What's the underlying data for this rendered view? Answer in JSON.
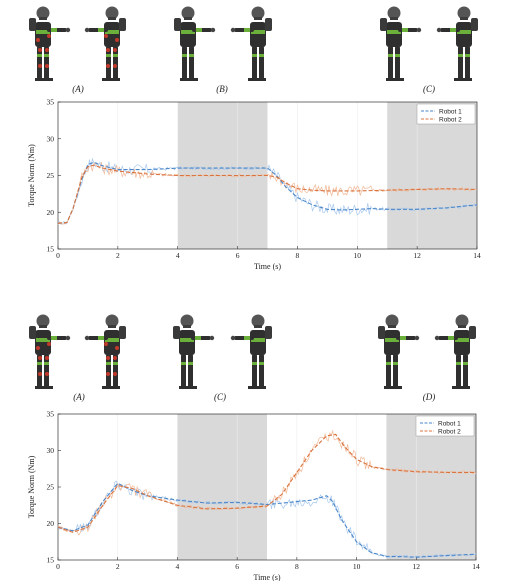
{
  "colors": {
    "robot1": "#4a86c8",
    "robot1_raw": "#a9c9ee",
    "robot2": "#d9743f",
    "robot2_raw": "#f2b896",
    "shade": "#d9d9d9",
    "robot_body": "#2f2f2f",
    "robot_green": "#6ab03a",
    "robot_red": "#c0392b"
  },
  "icons": [
    "humanoid-robot-icon"
  ],
  "chart_data": [
    {
      "type": "line",
      "xlabel": "Time (s)",
      "ylabel": "Torque Norm (Nm)",
      "xlim": [
        0,
        14
      ],
      "ylim": [
        15,
        35
      ],
      "xticks": [
        0,
        2,
        4,
        6,
        8,
        10,
        12,
        14
      ],
      "yticks": [
        15,
        20,
        25,
        30,
        35
      ],
      "shaded_regions": [
        [
          4,
          7
        ],
        [
          11,
          14
        ]
      ],
      "grid": false,
      "legend_position": "top-right",
      "phase_labels": [
        "(A)",
        "(B)",
        "(C)"
      ],
      "series": [
        {
          "name": "Robot 1",
          "x": [
            0,
            0.3,
            0.5,
            0.8,
            1.0,
            1.2,
            1.5,
            2,
            3,
            4,
            5,
            6,
            7,
            7.3,
            7.6,
            8,
            8.5,
            9,
            9.5,
            10,
            10.5,
            11,
            12,
            13,
            14
          ],
          "y": [
            18.5,
            18.6,
            20.5,
            24.5,
            26.5,
            26.8,
            26.3,
            25.8,
            25.8,
            26.0,
            26.0,
            26.0,
            26.0,
            25.0,
            23.5,
            22.0,
            21.0,
            20.4,
            20.3,
            20.4,
            20.5,
            20.4,
            20.4,
            20.6,
            21.0
          ]
        },
        {
          "name": "Robot 2",
          "x": [
            0,
            0.3,
            0.5,
            0.8,
            1.0,
            1.2,
            1.5,
            2,
            3,
            4,
            5,
            6,
            7,
            7.3,
            7.6,
            8,
            8.5,
            9,
            9.5,
            10,
            11,
            12,
            13,
            14
          ],
          "y": [
            18.5,
            18.6,
            20.5,
            24.8,
            26.2,
            26.4,
            26.0,
            25.6,
            25.2,
            25.0,
            25.0,
            25.0,
            25.0,
            24.8,
            24.0,
            23.2,
            23.0,
            22.9,
            22.9,
            22.9,
            23.0,
            23.1,
            23.2,
            23.1
          ]
        }
      ]
    },
    {
      "type": "line",
      "xlabel": "Time (s)",
      "ylabel": "Torque Norm (Nm)",
      "xlim": [
        0,
        14
      ],
      "ylim": [
        15,
        35
      ],
      "xticks": [
        0,
        2,
        4,
        6,
        8,
        10,
        12,
        14
      ],
      "yticks": [
        15,
        20,
        25,
        30,
        35
      ],
      "shaded_regions": [
        [
          4,
          7
        ],
        [
          11,
          14
        ]
      ],
      "grid": false,
      "legend_position": "top-right",
      "phase_labels": [
        "(A)",
        "(C)",
        "(D)"
      ],
      "series": [
        {
          "name": "Robot 1",
          "x": [
            0,
            0.5,
            1.0,
            1.5,
            2.0,
            2.5,
            3,
            4,
            5,
            6,
            7,
            7.5,
            8,
            8.5,
            9,
            9.2,
            9.5,
            10,
            10.5,
            11,
            12,
            13,
            14
          ],
          "y": [
            19.5,
            19.0,
            19.8,
            23.0,
            25.5,
            24.5,
            23.8,
            23.2,
            22.8,
            22.9,
            22.6,
            22.8,
            23.0,
            23.2,
            23.8,
            23.0,
            20.5,
            17.5,
            16.0,
            15.5,
            15.4,
            15.6,
            15.8
          ]
        },
        {
          "name": "Robot 2",
          "x": [
            0,
            0.5,
            1.0,
            1.5,
            2.0,
            2.5,
            3,
            4,
            5,
            6,
            7,
            7.5,
            8,
            8.5,
            9,
            9.3,
            9.6,
            10,
            10.5,
            11,
            12,
            13,
            14
          ],
          "y": [
            19.5,
            18.8,
            19.5,
            22.5,
            25.2,
            24.8,
            23.8,
            22.5,
            22.0,
            22.1,
            22.4,
            24.0,
            27.0,
            30.0,
            32.0,
            32.2,
            30.5,
            28.8,
            27.8,
            27.4,
            27.1,
            27.0,
            27.0
          ]
        }
      ]
    }
  ]
}
